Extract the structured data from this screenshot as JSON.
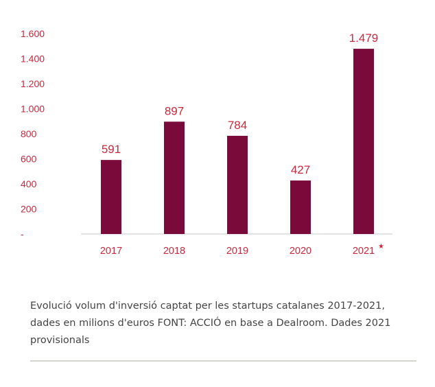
{
  "chart_data": {
    "type": "bar",
    "categories": [
      "2017",
      "2018",
      "2019",
      "2020",
      "2021"
    ],
    "values": [
      591,
      897,
      784,
      427,
      1479
    ],
    "value_labels": [
      "591",
      "897",
      "784",
      "427",
      "1.479"
    ],
    "category_markers": [
      "",
      "",
      "",
      "",
      "★"
    ],
    "yticks": [
      0,
      200,
      400,
      600,
      800,
      1000,
      1200,
      1400,
      1600
    ],
    "ytick_labels": [
      "-",
      "200",
      "400",
      "600",
      "800",
      "1.000",
      "1.200",
      "1.400",
      "1.600"
    ],
    "ylim": [
      0,
      1600
    ],
    "title": "",
    "xlabel": "",
    "ylabel": "",
    "grid": false,
    "colors": {
      "bar": "#7a0a3a",
      "label": "#c8283c",
      "axis": "#c8c8c8"
    }
  },
  "caption": {
    "line1": "Evolució volum d'inversió captat per les startups catalanes 2017-2021,",
    "line2": "dades en milions d'euros FONT: ACCIÓ en base a Dealroom. Dades 2021",
    "line3": "provisionals"
  }
}
